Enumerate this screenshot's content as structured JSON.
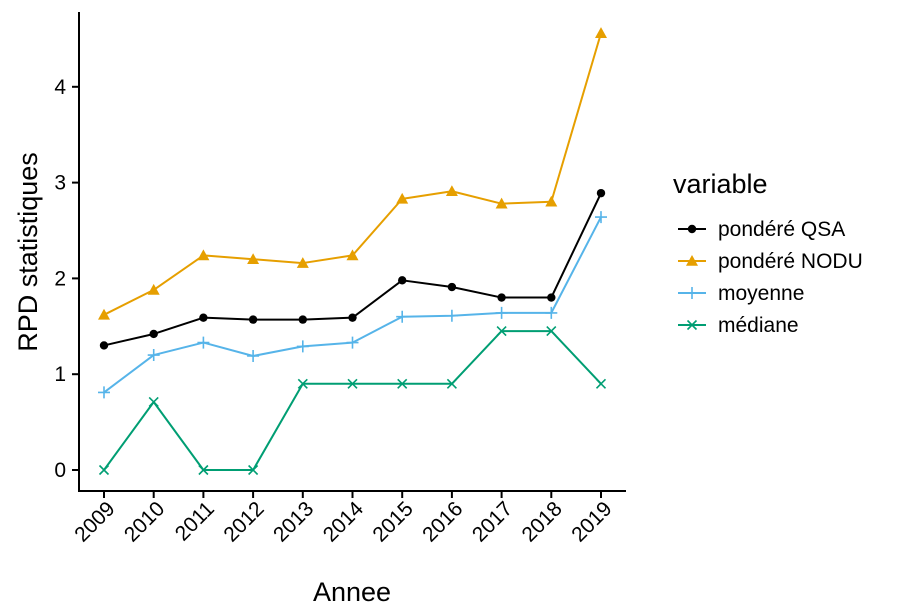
{
  "chart_data": {
    "type": "line",
    "xlabel": "Annee",
    "ylabel": "RPD statistiques",
    "ylim": [
      -0.2,
      4.8
    ],
    "yticks": [
      0,
      1,
      2,
      3,
      4
    ],
    "categories": [
      "2009",
      "2010",
      "2011",
      "2012",
      "2013",
      "2014",
      "2015",
      "2016",
      "2017",
      "2018",
      "2019"
    ],
    "legend_title": "variable",
    "legend_position": "right",
    "grid": false,
    "series": [
      {
        "name": "pondéré QSA",
        "color": "#000000",
        "marker": "circle",
        "values": [
          1.3,
          1.42,
          1.59,
          1.57,
          1.57,
          1.59,
          1.98,
          1.91,
          1.8,
          1.8,
          2.89
        ]
      },
      {
        "name": "pondéré NODU",
        "color": "#E69F00",
        "marker": "triangle",
        "values": [
          1.62,
          1.88,
          2.24,
          2.2,
          2.16,
          2.24,
          2.83,
          2.91,
          2.78,
          2.8,
          4.56
        ]
      },
      {
        "name": "moyenne",
        "color": "#56B4E9",
        "marker": "plus",
        "values": [
          0.81,
          1.2,
          1.33,
          1.19,
          1.29,
          1.33,
          1.6,
          1.61,
          1.64,
          1.64,
          2.64
        ]
      },
      {
        "name": "médiane",
        "color": "#009E73",
        "marker": "cross",
        "values": [
          0.0,
          0.71,
          0.0,
          0.0,
          0.9,
          0.9,
          0.9,
          0.9,
          1.45,
          1.45,
          0.9
        ]
      }
    ]
  }
}
